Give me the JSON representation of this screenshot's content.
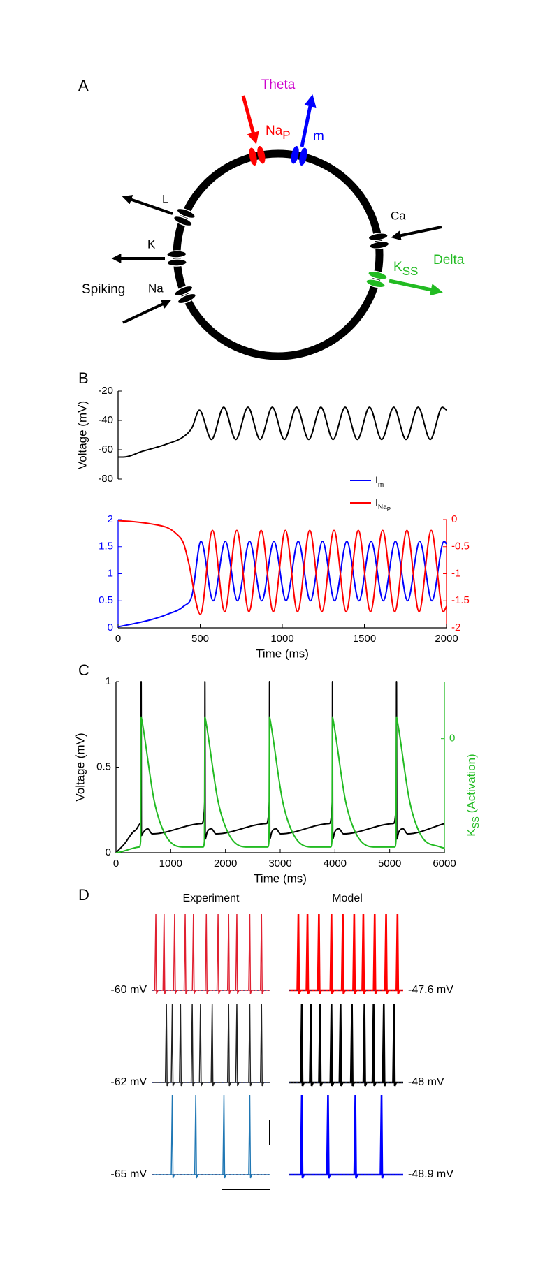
{
  "panel_labels": [
    "A",
    "B",
    "C",
    "D"
  ],
  "diagram": {
    "theta": "Theta",
    "nap": {
      "main": "Na",
      "sub": "P"
    },
    "m": "m",
    "l": "L",
    "k": "K",
    "na": "Na",
    "spiking": "Spiking",
    "ca": "Ca",
    "kss": {
      "main": "K",
      "sub": "SS"
    },
    "delta": "Delta"
  },
  "chart_data": [
    {
      "type": "line",
      "ylabel": "Voltage (mV)",
      "xlim": [
        0,
        2000
      ],
      "ylim": [
        -80,
        -20
      ],
      "yticks": [
        -80,
        -60,
        -40,
        -20
      ],
      "series": [
        {
          "color": "#000000",
          "x": [
            0,
            30,
            150,
            300,
            400,
            450,
            495,
            569,
            643,
            717,
            791,
            865,
            939,
            1013,
            1087,
            1161,
            1235,
            1309,
            1383,
            1457,
            1531,
            1605,
            1679,
            1753,
            1827,
            1901,
            1975,
            2000
          ],
          "values": [
            -65,
            -65,
            -61,
            -56,
            -51,
            -45,
            -33,
            -53,
            -31,
            -53,
            -31,
            -53,
            -31,
            -53,
            -31,
            -53,
            -31,
            -53,
            -31,
            -53,
            -31,
            -53,
            -31,
            -53,
            -31,
            -53,
            -31,
            -33
          ]
        }
      ]
    },
    {
      "type": "line",
      "xlabel": "Time (ms)",
      "xlim": [
        0,
        2000
      ],
      "xticks": [
        0,
        500,
        1000,
        1500,
        2000
      ],
      "ylim": [
        0,
        2
      ],
      "yticks": [
        0,
        0.5,
        1,
        1.5,
        2
      ],
      "y2lim": [
        -2,
        0
      ],
      "y2ticks": [
        -2,
        -1.5,
        -1,
        -0.5,
        0
      ],
      "series": [
        {
          "name": "I",
          "name_sub": "m",
          "color": "#0000ff",
          "x": [
            0,
            100,
            200,
            300,
            400,
            450,
            505,
            579,
            653,
            727,
            801,
            875,
            949,
            1023,
            1097,
            1171,
            1245,
            1319,
            1393,
            1467,
            1541,
            1615,
            1689,
            1763,
            1837,
            1911,
            1985,
            2000
          ],
          "values": [
            0.02,
            0.08,
            0.15,
            0.25,
            0.4,
            0.6,
            1.6,
            0.5,
            1.6,
            0.5,
            1.6,
            0.5,
            1.6,
            0.5,
            1.6,
            0.5,
            1.6,
            0.5,
            1.6,
            0.5,
            1.6,
            0.5,
            1.6,
            0.5,
            1.6,
            0.5,
            1.6,
            1.55
          ]
        },
        {
          "name": "I",
          "name_sub": "Na",
          "name_subsub": "P",
          "color": "#ff0000",
          "axis": "y2",
          "x": [
            0,
            100,
            200,
            300,
            350,
            400,
            430,
            501,
            575,
            649,
            723,
            797,
            871,
            945,
            1019,
            1093,
            1167,
            1241,
            1315,
            1389,
            1463,
            1537,
            1611,
            1685,
            1759,
            1833,
            1907,
            1981,
            2000
          ],
          "values": [
            -0.02,
            -0.04,
            -0.08,
            -0.15,
            -0.25,
            -0.45,
            -0.8,
            -1.75,
            -0.2,
            -1.7,
            -0.2,
            -1.7,
            -0.2,
            -1.7,
            -0.2,
            -1.7,
            -0.2,
            -1.7,
            -0.2,
            -1.7,
            -0.2,
            -1.7,
            -0.2,
            -1.7,
            -0.2,
            -1.7,
            -0.2,
            -1.7,
            -1.6
          ]
        }
      ]
    },
    {
      "type": "line",
      "xlabel": "Time (ms)",
      "ylabel": "Voltage (mV)",
      "y2label": {
        "main": "K",
        "sub": "SS",
        "rest": " (Activation)"
      },
      "xlim": [
        0,
        6000
      ],
      "xticks": [
        0,
        1000,
        2000,
        3000,
        4000,
        5000,
        6000
      ],
      "ylim": [
        0,
        1
      ],
      "yticks": [
        0,
        0.5,
        1
      ],
      "y2lim": [
        -1,
        0.5
      ],
      "y2ticks": [
        0
      ],
      "series": [
        {
          "color": "#000000",
          "x": [
            0,
            150,
            350,
            440,
            457,
            460,
            465,
            500,
            580,
            660,
            1565,
            1622,
            1625,
            1630,
            1665,
            1745,
            1825,
            2745,
            2802,
            2805,
            2810,
            2845,
            2925,
            3005,
            3895,
            3952,
            3955,
            3960,
            3995,
            4075,
            4155,
            5065,
            5122,
            5125,
            5130,
            5165,
            5245,
            5325,
            6000
          ],
          "values": [
            0,
            0.05,
            0.13,
            0.17,
            0.3,
            1,
            0.1,
            0.12,
            0.14,
            0.11,
            0.17,
            0.3,
            1,
            0.08,
            0.12,
            0.14,
            0.11,
            0.17,
            0.3,
            1,
            0.08,
            0.12,
            0.14,
            0.11,
            0.17,
            0.3,
            1,
            0.08,
            0.12,
            0.14,
            0.11,
            0.17,
            0.3,
            1,
            0.08,
            0.12,
            0.14,
            0.11,
            0.17
          ]
        },
        {
          "color": "#22bb22",
          "axis": "y2",
          "x": [
            0,
            425,
            450,
            460,
            470,
            700,
            910,
            1260,
            1590,
            1615,
            1625,
            1635,
            1865,
            2075,
            2425,
            2770,
            2795,
            2805,
            2815,
            3045,
            3255,
            3605,
            3920,
            3945,
            3955,
            3965,
            4195,
            4405,
            4755,
            5090,
            5115,
            5125,
            5135,
            5365,
            5575,
            5925,
            6000
          ],
          "values": [
            -1,
            -0.95,
            -0.9,
            0.19,
            0.17,
            -0.55,
            -0.85,
            -0.95,
            -0.95,
            -0.9,
            0.19,
            0.17,
            -0.55,
            -0.85,
            -0.95,
            -0.95,
            -0.9,
            0.19,
            0.17,
            -0.55,
            -0.85,
            -0.95,
            -0.95,
            -0.9,
            0.19,
            0.17,
            -0.55,
            -0.85,
            -0.95,
            -0.95,
            -0.9,
            0.19,
            0.17,
            -0.55,
            -0.85,
            -0.95,
            -0.96
          ]
        }
      ]
    },
    {
      "type": "spike_trace",
      "label": "-60 mV",
      "color": "#e02030",
      "xlim": [
        0,
        100
      ],
      "spike_times": [
        3,
        10,
        19,
        28,
        35,
        46,
        56,
        65,
        72,
        83,
        93
      ]
    },
    {
      "type": "spike_trace",
      "label": "-47.6 mV",
      "color": "#ff0000",
      "xlim": [
        0,
        100
      ],
      "spike_times": [
        8,
        16,
        26,
        37,
        47,
        57,
        65,
        75,
        85,
        95
      ]
    },
    {
      "type": "spike_trace",
      "label": "-62 mV",
      "color": "#222222",
      "xlim": [
        0,
        100
      ],
      "spike_times": [
        12,
        17,
        24,
        34,
        41,
        51,
        65,
        72,
        83,
        93
      ]
    },
    {
      "type": "spike_trace",
      "label": "-48 mV",
      "color": "#000000",
      "xlim": [
        0,
        100
      ],
      "spike_times": [
        11,
        19,
        27,
        37,
        45,
        55,
        66,
        74,
        83,
        92
      ]
    },
    {
      "type": "spike_trace",
      "label": "-65 mV",
      "color": "#1f77b4",
      "xlim": [
        0,
        100
      ],
      "spike_times": [
        17,
        37,
        61,
        83
      ]
    },
    {
      "type": "spike_trace",
      "label": "-48.9 mV",
      "color": "#0000ff",
      "xlim": [
        0,
        100
      ],
      "spike_times": [
        11,
        34,
        58,
        81
      ]
    }
  ],
  "panel_d_titles": [
    "Experiment",
    "Model"
  ]
}
